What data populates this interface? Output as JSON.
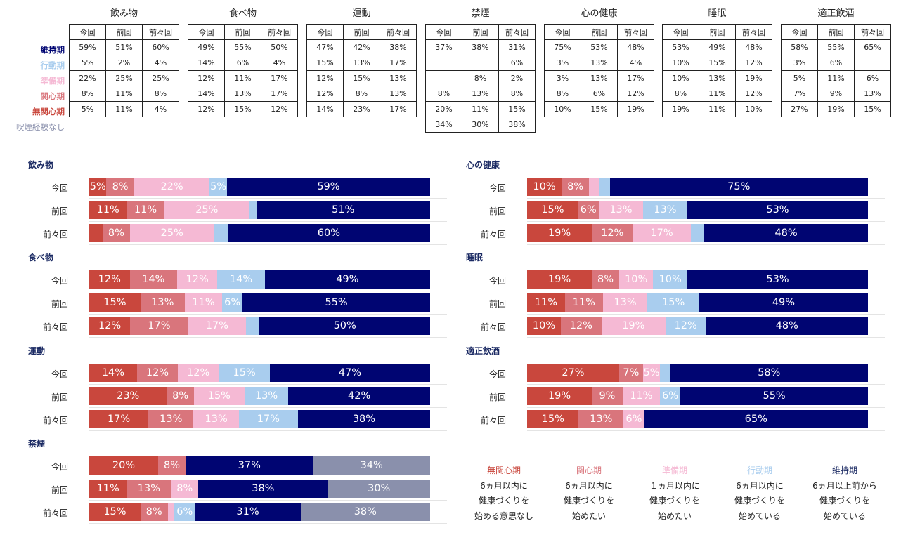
{
  "stages": [
    {
      "key": "maintenance",
      "label": "維持期",
      "color": "#000572"
    },
    {
      "key": "action",
      "label": "行動期",
      "color": "#a9cdee"
    },
    {
      "key": "preparation",
      "label": "準備期",
      "color": "#f5b9d4"
    },
    {
      "key": "contemplation",
      "label": "関心期",
      "color": "#d9757c"
    },
    {
      "key": "precontemplation",
      "label": "無関心期",
      "color": "#c9473d"
    },
    {
      "key": "never",
      "label": "喫煙経験なし",
      "color": "#8a90ac"
    }
  ],
  "periods": [
    "今回",
    "前回",
    "前々回"
  ],
  "tables": [
    {
      "title": "飲み物",
      "rows": [
        [
          "59%",
          "51%",
          "60%"
        ],
        [
          "5%",
          "2%",
          "4%"
        ],
        [
          "22%",
          "25%",
          "25%"
        ],
        [
          "8%",
          "11%",
          "8%"
        ],
        [
          "5%",
          "11%",
          "4%"
        ]
      ]
    },
    {
      "title": "食べ物",
      "rows": [
        [
          "49%",
          "55%",
          "50%"
        ],
        [
          "14%",
          "6%",
          "4%"
        ],
        [
          "12%",
          "11%",
          "17%"
        ],
        [
          "14%",
          "13%",
          "17%"
        ],
        [
          "12%",
          "15%",
          "12%"
        ]
      ]
    },
    {
      "title": "運動",
      "rows": [
        [
          "47%",
          "42%",
          "38%"
        ],
        [
          "15%",
          "13%",
          "17%"
        ],
        [
          "12%",
          "15%",
          "13%"
        ],
        [
          "12%",
          "8%",
          "13%"
        ],
        [
          "14%",
          "23%",
          "17%"
        ]
      ]
    },
    {
      "title": "禁煙",
      "rows": [
        [
          "37%",
          "38%",
          "31%"
        ],
        [
          "",
          "",
          "6%"
        ],
        [
          "",
          "8%",
          "2%"
        ],
        [
          "8%",
          "13%",
          "8%"
        ],
        [
          "20%",
          "11%",
          "15%"
        ],
        [
          "34%",
          "30%",
          "38%"
        ]
      ]
    },
    {
      "title": "心の健康",
      "rows": [
        [
          "75%",
          "53%",
          "48%"
        ],
        [
          "3%",
          "13%",
          "4%"
        ],
        [
          "3%",
          "13%",
          "17%"
        ],
        [
          "8%",
          "6%",
          "12%"
        ],
        [
          "10%",
          "15%",
          "19%"
        ]
      ]
    },
    {
      "title": "睡眠",
      "rows": [
        [
          "53%",
          "49%",
          "48%"
        ],
        [
          "10%",
          "15%",
          "12%"
        ],
        [
          "10%",
          "13%",
          "19%"
        ],
        [
          "8%",
          "11%",
          "12%"
        ],
        [
          "19%",
          "11%",
          "10%"
        ]
      ]
    },
    {
      "title": "適正飲酒",
      "rows": [
        [
          "58%",
          "55%",
          "65%"
        ],
        [
          "3%",
          "6%",
          ""
        ],
        [
          "5%",
          "11%",
          "6%"
        ],
        [
          "7%",
          "9%",
          "13%"
        ],
        [
          "27%",
          "19%",
          "15%"
        ]
      ]
    }
  ],
  "chart_data": [
    {
      "type": "bar",
      "title": "飲み物",
      "stacked": true,
      "orientation": "horizontal",
      "categories": [
        "今回",
        "前回",
        "前々回"
      ],
      "series": [
        {
          "name": "無関心期",
          "values": [
            5,
            11,
            4
          ],
          "labels": [
            "5%",
            "11%",
            ""
          ]
        },
        {
          "name": "関心期",
          "values": [
            8,
            11,
            8
          ],
          "labels": [
            "8%",
            "11%",
            "8%"
          ]
        },
        {
          "name": "準備期",
          "values": [
            22,
            25,
            25
          ],
          "labels": [
            "22%",
            "25%",
            "25%"
          ]
        },
        {
          "name": "行動期",
          "values": [
            5,
            2,
            4
          ],
          "labels": [
            "5%",
            "",
            ""
          ]
        },
        {
          "name": "維持期",
          "values": [
            59,
            51,
            60
          ],
          "labels": [
            "59%",
            "51%",
            "60%"
          ]
        }
      ]
    },
    {
      "type": "bar",
      "title": "食べ物",
      "stacked": true,
      "orientation": "horizontal",
      "categories": [
        "今回",
        "前回",
        "前々回"
      ],
      "series": [
        {
          "name": "無関心期",
          "values": [
            12,
            15,
            12
          ],
          "labels": [
            "12%",
            "15%",
            "12%"
          ]
        },
        {
          "name": "関心期",
          "values": [
            14,
            13,
            17
          ],
          "labels": [
            "14%",
            "13%",
            "17%"
          ]
        },
        {
          "name": "準備期",
          "values": [
            12,
            11,
            17
          ],
          "labels": [
            "12%",
            "11%",
            "17%"
          ]
        },
        {
          "name": "行動期",
          "values": [
            14,
            6,
            4
          ],
          "labels": [
            "14%",
            "6%",
            ""
          ]
        },
        {
          "name": "維持期",
          "values": [
            49,
            55,
            50
          ],
          "labels": [
            "49%",
            "55%",
            "50%"
          ]
        }
      ]
    },
    {
      "type": "bar",
      "title": "運動",
      "stacked": true,
      "orientation": "horizontal",
      "categories": [
        "今回",
        "前回",
        "前々回"
      ],
      "series": [
        {
          "name": "無関心期",
          "values": [
            14,
            23,
            17
          ],
          "labels": [
            "14%",
            "23%",
            "17%"
          ]
        },
        {
          "name": "関心期",
          "values": [
            12,
            8,
            13
          ],
          "labels": [
            "12%",
            "8%",
            "13%"
          ]
        },
        {
          "name": "準備期",
          "values": [
            12,
            15,
            13
          ],
          "labels": [
            "12%",
            "15%",
            "13%"
          ]
        },
        {
          "name": "行動期",
          "values": [
            15,
            13,
            17
          ],
          "labels": [
            "15%",
            "13%",
            "17%"
          ]
        },
        {
          "name": "維持期",
          "values": [
            47,
            42,
            38
          ],
          "labels": [
            "47%",
            "42%",
            "38%"
          ]
        }
      ]
    },
    {
      "type": "bar",
      "title": "禁煙",
      "stacked": true,
      "orientation": "horizontal",
      "categories": [
        "今回",
        "前回",
        "前々回"
      ],
      "series": [
        {
          "name": "無関心期",
          "values": [
            20,
            11,
            15
          ],
          "labels": [
            "20%",
            "11%",
            "15%"
          ]
        },
        {
          "name": "関心期",
          "values": [
            8,
            13,
            8
          ],
          "labels": [
            "8%",
            "13%",
            "8%"
          ]
        },
        {
          "name": "準備期",
          "values": [
            0,
            8,
            2
          ],
          "labels": [
            "",
            "8%",
            ""
          ]
        },
        {
          "name": "行動期",
          "values": [
            0,
            0,
            6
          ],
          "labels": [
            "",
            "",
            "6%"
          ]
        },
        {
          "name": "維持期",
          "values": [
            37,
            38,
            31
          ],
          "labels": [
            "37%",
            "38%",
            "31%"
          ]
        },
        {
          "name": "喫煙経験なし",
          "values": [
            34,
            30,
            38
          ],
          "labels": [
            "34%",
            "30%",
            "38%"
          ]
        }
      ]
    },
    {
      "type": "bar",
      "title": "心の健康",
      "stacked": true,
      "orientation": "horizontal",
      "categories": [
        "今回",
        "前回",
        "前々回"
      ],
      "series": [
        {
          "name": "無関心期",
          "values": [
            10,
            15,
            19
          ],
          "labels": [
            "10%",
            "15%",
            "19%"
          ]
        },
        {
          "name": "関心期",
          "values": [
            8,
            6,
            12
          ],
          "labels": [
            "8%",
            "6%",
            "12%"
          ]
        },
        {
          "name": "準備期",
          "values": [
            3,
            13,
            17
          ],
          "labels": [
            "",
            "13%",
            "17%"
          ]
        },
        {
          "name": "行動期",
          "values": [
            3,
            13,
            4
          ],
          "labels": [
            "",
            "13%",
            ""
          ]
        },
        {
          "name": "維持期",
          "values": [
            75,
            53,
            48
          ],
          "labels": [
            "75%",
            "53%",
            "48%"
          ]
        }
      ]
    },
    {
      "type": "bar",
      "title": "睡眠",
      "stacked": true,
      "orientation": "horizontal",
      "categories": [
        "今回",
        "前回",
        "前々回"
      ],
      "series": [
        {
          "name": "無関心期",
          "values": [
            19,
            11,
            10
          ],
          "labels": [
            "19%",
            "11%",
            "10%"
          ]
        },
        {
          "name": "関心期",
          "values": [
            8,
            11,
            12
          ],
          "labels": [
            "8%",
            "11%",
            "12%"
          ]
        },
        {
          "name": "準備期",
          "values": [
            10,
            13,
            19
          ],
          "labels": [
            "10%",
            "13%",
            "19%"
          ]
        },
        {
          "name": "行動期",
          "values": [
            10,
            15,
            12
          ],
          "labels": [
            "10%",
            "15%",
            "12%"
          ]
        },
        {
          "name": "維持期",
          "values": [
            53,
            49,
            48
          ],
          "labels": [
            "53%",
            "49%",
            "48%"
          ]
        }
      ]
    },
    {
      "type": "bar",
      "title": "適正飲酒",
      "stacked": true,
      "orientation": "horizontal",
      "categories": [
        "今回",
        "前回",
        "前々回"
      ],
      "series": [
        {
          "name": "無関心期",
          "values": [
            27,
            19,
            15
          ],
          "labels": [
            "27%",
            "19%",
            "15%"
          ]
        },
        {
          "name": "関心期",
          "values": [
            7,
            9,
            13
          ],
          "labels": [
            "7%",
            "9%",
            "13%"
          ]
        },
        {
          "name": "準備期",
          "values": [
            5,
            11,
            6
          ],
          "labels": [
            "5%",
            "11%",
            "6%"
          ]
        },
        {
          "name": "行動期",
          "values": [
            3,
            6,
            0
          ],
          "labels": [
            "",
            "6%",
            ""
          ]
        },
        {
          "name": "維持期",
          "values": [
            58,
            55,
            65
          ],
          "labels": [
            "58%",
            "55%",
            "65%"
          ]
        }
      ]
    }
  ],
  "legend": [
    {
      "name": "無関心期",
      "color": "#c9473d",
      "desc": [
        "6ヵ月以内に",
        "健康づくりを",
        "始める意思なし"
      ]
    },
    {
      "name": "関心期",
      "color": "#d9757c",
      "desc": [
        "6ヵ月以内に",
        "健康づくりを",
        "始めたい"
      ]
    },
    {
      "name": "準備期",
      "color": "#f5b9d4",
      "desc": [
        "１ヵ月以内に",
        "健康づくりを",
        "始めたい"
      ]
    },
    {
      "name": "行動期",
      "color": "#a9cdee",
      "desc": [
        "6ヵ月以内に",
        "健康づくりを",
        "始めている"
      ]
    },
    {
      "name": "維持期",
      "color": "#1b2a63",
      "desc": [
        "6ヵ月以上前から",
        "健康づくりを",
        "始めている"
      ]
    }
  ]
}
